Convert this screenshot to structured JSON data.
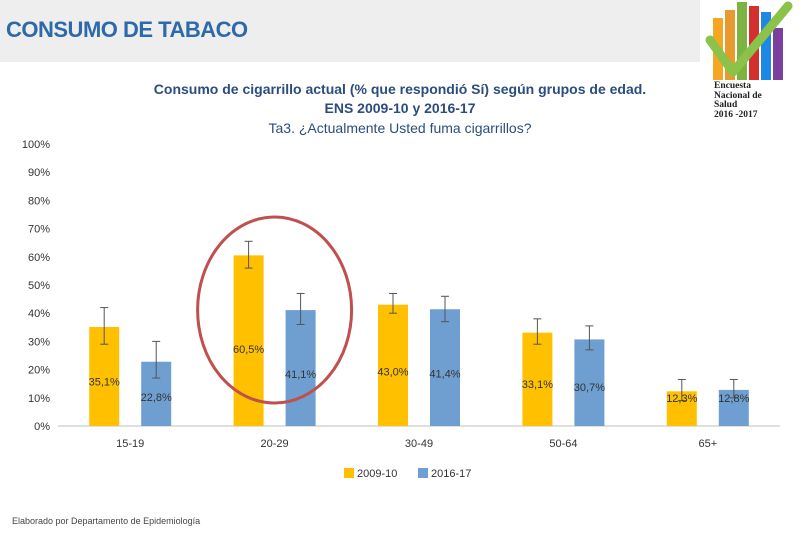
{
  "header": {
    "title": "CONSUMO DE TABACO"
  },
  "logo": {
    "lines": [
      "Encuesta",
      "Nacional de",
      "Salud",
      "2016 -2017"
    ]
  },
  "chart_data": {
    "type": "bar",
    "title": "Consumo de cigarrillo actual (% que respondió Sí) según grupos de edad.",
    "subtitle": "ENS 2009-10 y 2016-17",
    "question": "Ta3. ¿Actualmente Usted fuma cigarrillos?",
    "categories": [
      "15-19",
      "20-29",
      "30-49",
      "50-64",
      "65+"
    ],
    "series": [
      {
        "name": "2009-10",
        "color": "#ffc000",
        "values": [
          35.1,
          60.5,
          43.0,
          33.1,
          12.3
        ],
        "labels": [
          "35,1%",
          "60,5%",
          "43,0%",
          "33,1%",
          "12,3%"
        ],
        "error_low": [
          29.0,
          56.0,
          40.0,
          29.0,
          9.0
        ],
        "error_high": [
          42.0,
          65.5,
          47.0,
          38.0,
          16.5
        ]
      },
      {
        "name": "2016-17",
        "color": "#6f9fd1",
        "values": [
          22.8,
          41.1,
          41.4,
          30.7,
          12.8
        ],
        "labels": [
          "22,8%",
          "41,1%",
          "41,4%",
          "30,7%",
          "12,8%"
        ],
        "error_low": [
          17.0,
          36.0,
          37.0,
          27.0,
          10.0
        ],
        "error_high": [
          30.0,
          47.0,
          46.0,
          35.5,
          16.5
        ]
      }
    ],
    "ylim": [
      0,
      100
    ],
    "yticks": [
      "0%",
      "10%",
      "20%",
      "30%",
      "40%",
      "50%",
      "60%",
      "70%",
      "80%",
      "90%",
      "100%"
    ],
    "legend_position": "bottom",
    "grid": false,
    "highlight": {
      "category": "20-29",
      "shape": "ellipse",
      "color": "#c0504d"
    }
  },
  "footer": {
    "text": "Elaborado por Departamento de Epidemiología"
  }
}
